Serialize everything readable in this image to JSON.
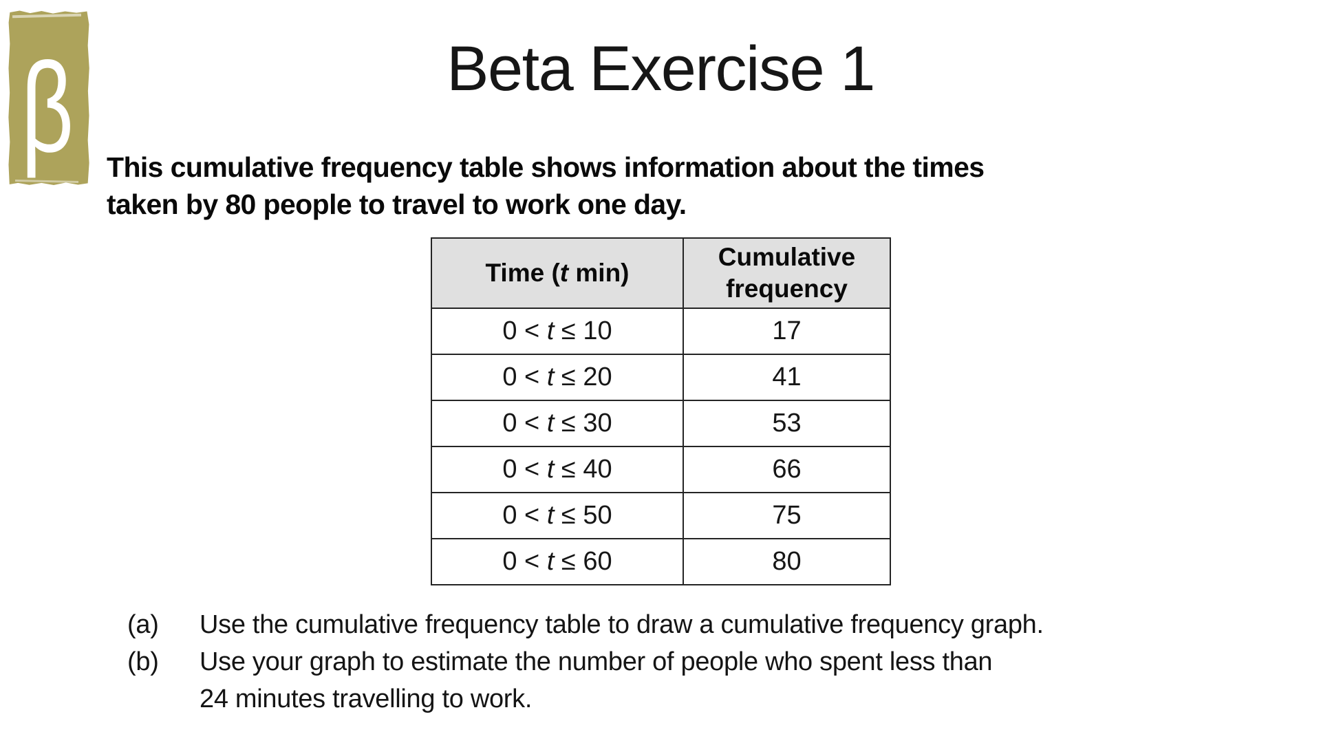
{
  "page": {
    "background": "#ffffff"
  },
  "logo": {
    "glyph": "β",
    "box_color": "#ada35b",
    "glyph_color": "#ffffff"
  },
  "title": "Beta Exercise 1",
  "intro": {
    "line1": "This cumulative frequency table shows information about the times",
    "line2": "taken by 80 people to travel to work one day."
  },
  "table": {
    "colors": {
      "header_bg": "#e0e0e0",
      "border": "#242424"
    },
    "header": {
      "time_prefix": "Time (",
      "time_var": "t",
      "time_suffix": " min)",
      "freq_line1": "Cumulative",
      "freq_line2": "frequency"
    },
    "rows": [
      {
        "prefix": "0 < ",
        "tvar": "t",
        "suffix": " ≤ 10",
        "value": "17"
      },
      {
        "prefix": "0 < ",
        "tvar": "t",
        "suffix": " ≤ 20",
        "value": "41"
      },
      {
        "prefix": "0 < ",
        "tvar": "t",
        "suffix": " ≤ 30",
        "value": "53"
      },
      {
        "prefix": "0 < ",
        "tvar": "t",
        "suffix": " ≤ 40",
        "value": "66"
      },
      {
        "prefix": "0 < ",
        "tvar": "t",
        "suffix": " ≤ 50",
        "value": "75"
      },
      {
        "prefix": "0 < ",
        "tvar": "t",
        "suffix": " ≤ 60",
        "value": "80"
      }
    ]
  },
  "questions": [
    {
      "label": "(a)",
      "lines": [
        "Use the cumulative frequency table to draw a cumulative frequency graph."
      ]
    },
    {
      "label": "(b)",
      "lines": [
        "Use your graph to estimate the number of people who spent less than",
        "24 minutes travelling to work."
      ]
    }
  ]
}
